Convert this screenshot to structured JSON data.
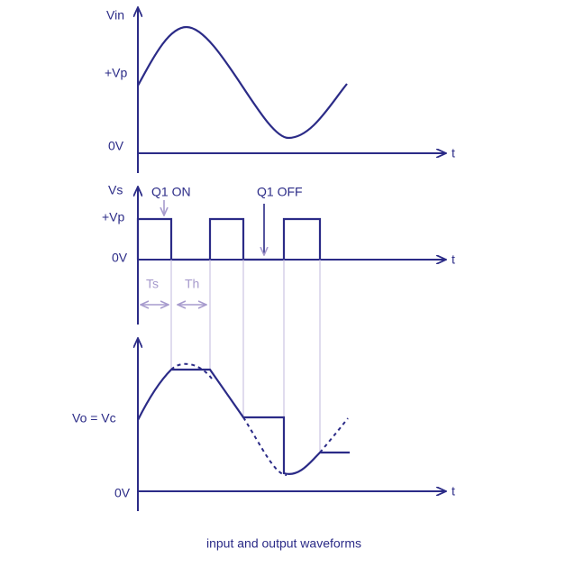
{
  "input": {
    "y_label": "Vin",
    "level_high": "+Vp",
    "level_zero": "0V",
    "x_label": "t"
  },
  "switch": {
    "y_label": "Vs",
    "on_label": "Q1 ON",
    "level_high": "+Vp",
    "off_label": "Q1 OFF",
    "level_zero": "0V",
    "x_label": "t",
    "sample_label": "Ts",
    "hold_label": "Th"
  },
  "output": {
    "y_label": "Vo = Vc",
    "level_zero": "0V",
    "x_label": "t"
  },
  "caption": "input and output waveforms"
}
